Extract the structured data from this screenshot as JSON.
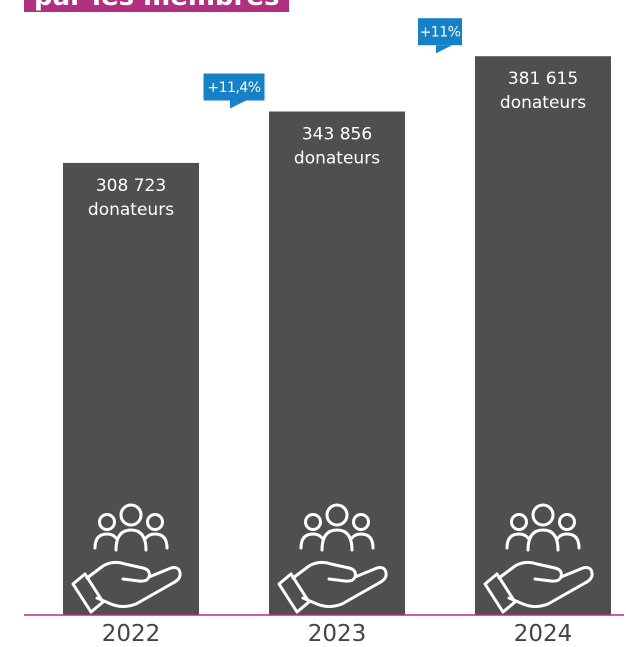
{
  "title": "par les membres",
  "colors": {
    "bar": "#4f4f4f",
    "accent": "#b0307f",
    "badge": "#1681c6",
    "axis": "#b0307f",
    "text_dark": "#444444",
    "text_light": "#ffffff"
  },
  "icon": "hand-holding-group-icon",
  "chart_data": {
    "type": "bar",
    "title": "",
    "categories": [
      "2022",
      "2023",
      "2024"
    ],
    "values": [
      308723,
      343856,
      381615
    ],
    "value_labels": [
      [
        "308 723",
        "donateurs"
      ],
      [
        "343 856",
        "donateurs"
      ],
      [
        "381 615",
        "donateurs"
      ]
    ],
    "growth_labels": [
      "+11,4%",
      "+11%"
    ],
    "ylim": [
      0,
      420000
    ],
    "grid": false,
    "legend": "none"
  }
}
